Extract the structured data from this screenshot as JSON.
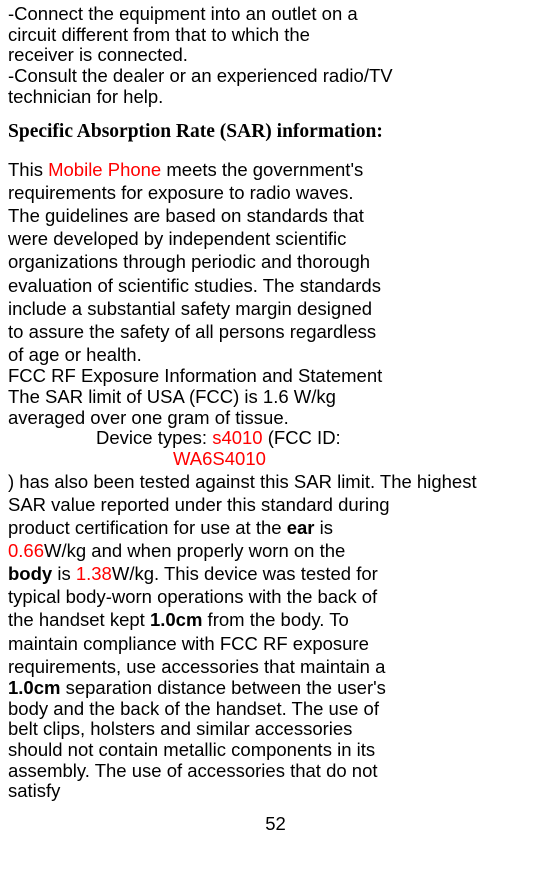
{
  "intro": {
    "l1": "-Connect the equipment into an outlet on a",
    "l2": "circuit different from that to which the",
    "l3": "receiver is connected.",
    "l4": "-Consult the dealer or an experienced radio/TV",
    "l5": "technician for help."
  },
  "heading": "Specific Absorption Rate (SAR) information:",
  "p1": {
    "l1a": "This ",
    "l1b": "Mobile Phone",
    "l1c": " meets the government's",
    "l2": "requirements for exposure to radio waves.",
    "l3": "The guidelines are based on standards that",
    "l4": "were developed by independent scientific",
    "l5": "organizations through periodic and thorough",
    "l6": "evaluation of scientific studies. The standards",
    "l7": "include a substantial safety margin designed",
    "l8": "to assure the safety of all persons regardless",
    "l9": "of age or health."
  },
  "p2": {
    "l1": " FCC RF Exposure Information and Statement",
    "l2": "The SAR limit of USA (FCC) is 1.6 W/kg",
    "l3": "averaged over one gram of tissue."
  },
  "device": {
    "l1a": "Device types: ",
    "l1b": "s4010",
    "l1c": " (FCC ID:",
    "l2": "WA6S4010"
  },
  "p3": {
    "l1": ") has also been tested against this SAR limit. The highest",
    "l2": "SAR value reported under this standard during",
    "l3a": "product certification for use at the ",
    "l3b": "ear",
    "l3c": " is",
    "l4a": "0.66",
    "l4b": "W/kg and when properly worn on the",
    "l5a": "body",
    "l5b": " is ",
    "l5c": "1.38",
    "l5d": "W/kg. This device was tested for",
    "l6": "typical body-worn operations with the back of",
    "l7a": "the handset kept ",
    "l7b": "1.0cm",
    "l7c": " from the body. To",
    "l8": "maintain compliance with FCC RF exposure",
    "l9": "requirements, use accessories that maintain a",
    "l10a": "1.0cm",
    "l10b": " separation distance between the user's",
    "l11": "body and the back of the handset. The use of",
    "l12": "belt clips, holsters and similar accessories",
    "l13": "should not contain metallic components in its",
    "l14": "assembly. The use of accessories that do not",
    "l15": "satisfy"
  },
  "page_number": "52"
}
